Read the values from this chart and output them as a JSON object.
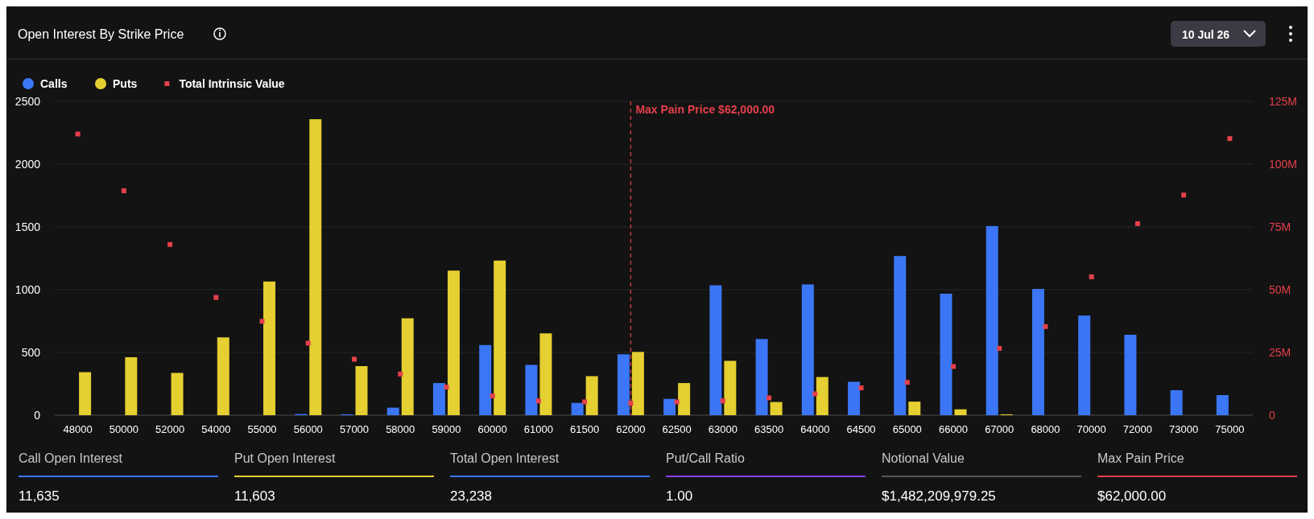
{
  "chart_data": {
    "type": "bar",
    "title": "Open Interest By Strike Price",
    "categories": [
      "48000",
      "50000",
      "52000",
      "54000",
      "55000",
      "56000",
      "57000",
      "58000",
      "59000",
      "60000",
      "61000",
      "61500",
      "62000",
      "62500",
      "63000",
      "63500",
      "64000",
      "64500",
      "65000",
      "66000",
      "67000",
      "68000",
      "70000",
      "72000",
      "73000",
      "75000"
    ],
    "series": [
      {
        "name": "Calls",
        "color": "#3b76f6",
        "values": [
          null,
          null,
          null,
          null,
          null,
          9,
          7,
          60,
          256,
          559,
          401,
          98,
          485,
          130,
          1035,
          607,
          1042,
          266,
          1268,
          968,
          1507,
          1006,
          794,
          641,
          199,
          160
        ]
      },
      {
        "name": "Puts",
        "color": "#e5cf31",
        "values": [
          343,
          462,
          337,
          620,
          1065,
          2358,
          391,
          772,
          1152,
          1232,
          652,
          311,
          504,
          256,
          433,
          105,
          304,
          null,
          108,
          47,
          7,
          null,
          null,
          null,
          null,
          null
        ]
      },
      {
        "name": "Total Intrinsic Value",
        "type": "scatter",
        "axis": "y2",
        "color": "#e5404b",
        "values": [
          112000000,
          89400000,
          68000000,
          46900000,
          37400000,
          28700000,
          22300000,
          16400000,
          11200000,
          7700000,
          5700000,
          5300000,
          4800000,
          5300000,
          5700000,
          6900000,
          8500000,
          10900000,
          13100000,
          19400000,
          26600000,
          35300000,
          55100000,
          76300000,
          87700000,
          110200000
        ]
      }
    ],
    "ylim": [
      0,
      2500
    ],
    "yticks": [
      0,
      500,
      1000,
      1500,
      2000,
      2500
    ],
    "y2lim": [
      0,
      125000000
    ],
    "y2ticks": [
      {
        "value": 0,
        "label": "0"
      },
      {
        "value": 25000000,
        "label": "25M"
      },
      {
        "value": 50000000,
        "label": "50M"
      },
      {
        "value": 75000000,
        "label": "75M"
      },
      {
        "value": 100000000,
        "label": "100M"
      },
      {
        "value": 125000000,
        "label": "125M"
      }
    ],
    "ref_lines": [
      {
        "axis": "x",
        "value": "62000",
        "label": "Max Pain Price $62,000.00",
        "color": "#e5404b",
        "line_style": "dashed"
      }
    ],
    "grid": "y",
    "legend": "top left",
    "marker": "square",
    "annotations": [
      "10 Jul 26",
      "Call Open Interest",
      "11,635",
      "Put Open Interest",
      "11,603",
      "Total Open Interest",
      "23,238",
      "Put/Call Ratio",
      "1.00",
      "Notional Value",
      "$1,482,209,979.25",
      "Max Pain Price",
      "$62,000.00"
    ]
  }
}
